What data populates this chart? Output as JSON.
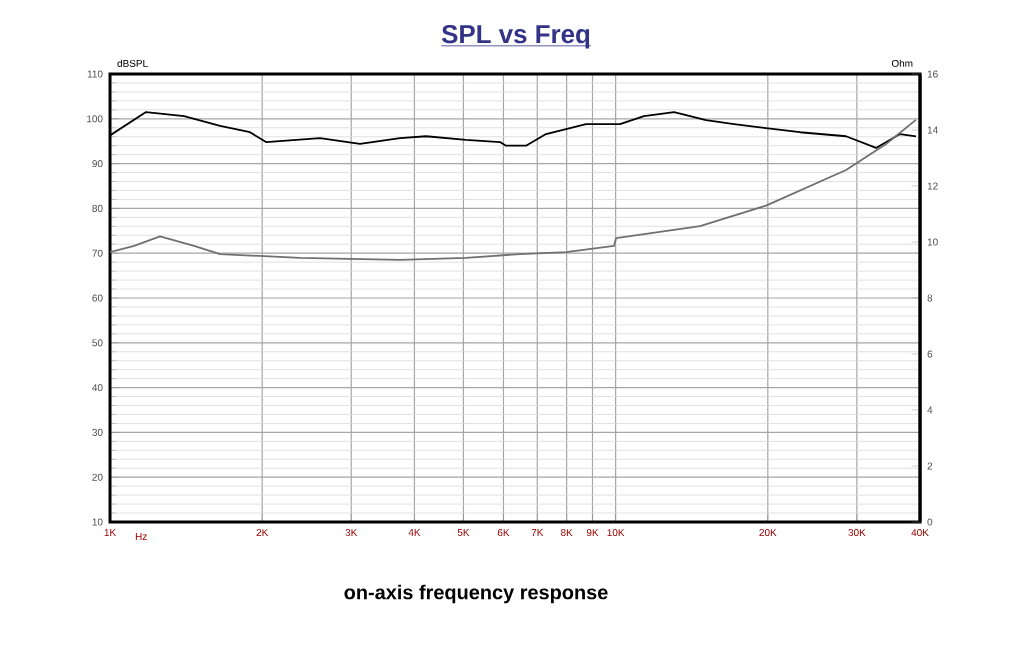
{
  "chart_data": {
    "type": "line",
    "title": "SPL vs Freq",
    "xlabel": "Hz",
    "ylabel": "dBSPL",
    "y2label": "Ohm",
    "annotations": [
      "on-axis frequency response"
    ],
    "log": "x",
    "grid": true,
    "marker": "none",
    "line_style": "solid",
    "xlim": [
      1000,
      40000
    ],
    "xticks": [
      {
        "value": 1000,
        "label": "1K"
      },
      {
        "value": 2000,
        "label": "2K"
      },
      {
        "value": 3000,
        "label": "3K"
      },
      {
        "value": 4000,
        "label": "4K"
      },
      {
        "value": 5000,
        "label": "5K"
      },
      {
        "value": 6000,
        "label": "6K"
      },
      {
        "value": 7000,
        "label": "7K"
      },
      {
        "value": 8000,
        "label": "8K"
      },
      {
        "value": 9000,
        "label": "9K"
      },
      {
        "value": 10000,
        "label": "10K"
      },
      {
        "value": 20000,
        "label": "20K"
      },
      {
        "value": 30000,
        "label": "30K"
      },
      {
        "value": 40000,
        "label": "40K"
      }
    ],
    "ylim": [
      10,
      110
    ],
    "yticks": [
      10,
      20,
      30,
      40,
      50,
      60,
      70,
      80,
      90,
      100,
      110
    ],
    "y2lim": [
      0,
      16
    ],
    "y2ticks": [
      0,
      2,
      4,
      6,
      8,
      10,
      12,
      14,
      16
    ],
    "series": [
      {
        "color": "#000000",
        "x": [
          1000,
          1178,
          1401,
          1651,
          1892,
          2035,
          2602,
          3122,
          3747,
          4217,
          5059,
          5906,
          6070,
          6649,
          7284,
          8739,
          10200,
          11380,
          13050,
          15100,
          17150,
          19840,
          23150,
          28560,
          32740,
          36520,
          39270
        ],
        "values": [
          96.3,
          101.5,
          100.6,
          98.4,
          97,
          94.8,
          95.7,
          94.4,
          95.7,
          96.1,
          95.3,
          94.8,
          94,
          94,
          96.6,
          98.8,
          98.8,
          100.6,
          101.5,
          99.7,
          98.8,
          97.9,
          97,
          96.1,
          93.5,
          96.6,
          96.1
        ]
      },
      {
        "color": "#707070",
        "axis": "y2",
        "x": [
          1000,
          1116,
          1256,
          1466,
          1651,
          2376,
          3747,
          5059,
          6471,
          7980,
          9927,
          10020,
          14690,
          19840,
          28560,
          34270,
          39270
        ],
        "values": [
          9.64,
          9.86,
          10.2,
          9.86,
          9.57,
          9.43,
          9.36,
          9.43,
          9.57,
          9.64,
          9.86,
          10.14,
          10.57,
          11.3,
          12.57,
          13.5,
          14.36
        ]
      }
    ]
  }
}
